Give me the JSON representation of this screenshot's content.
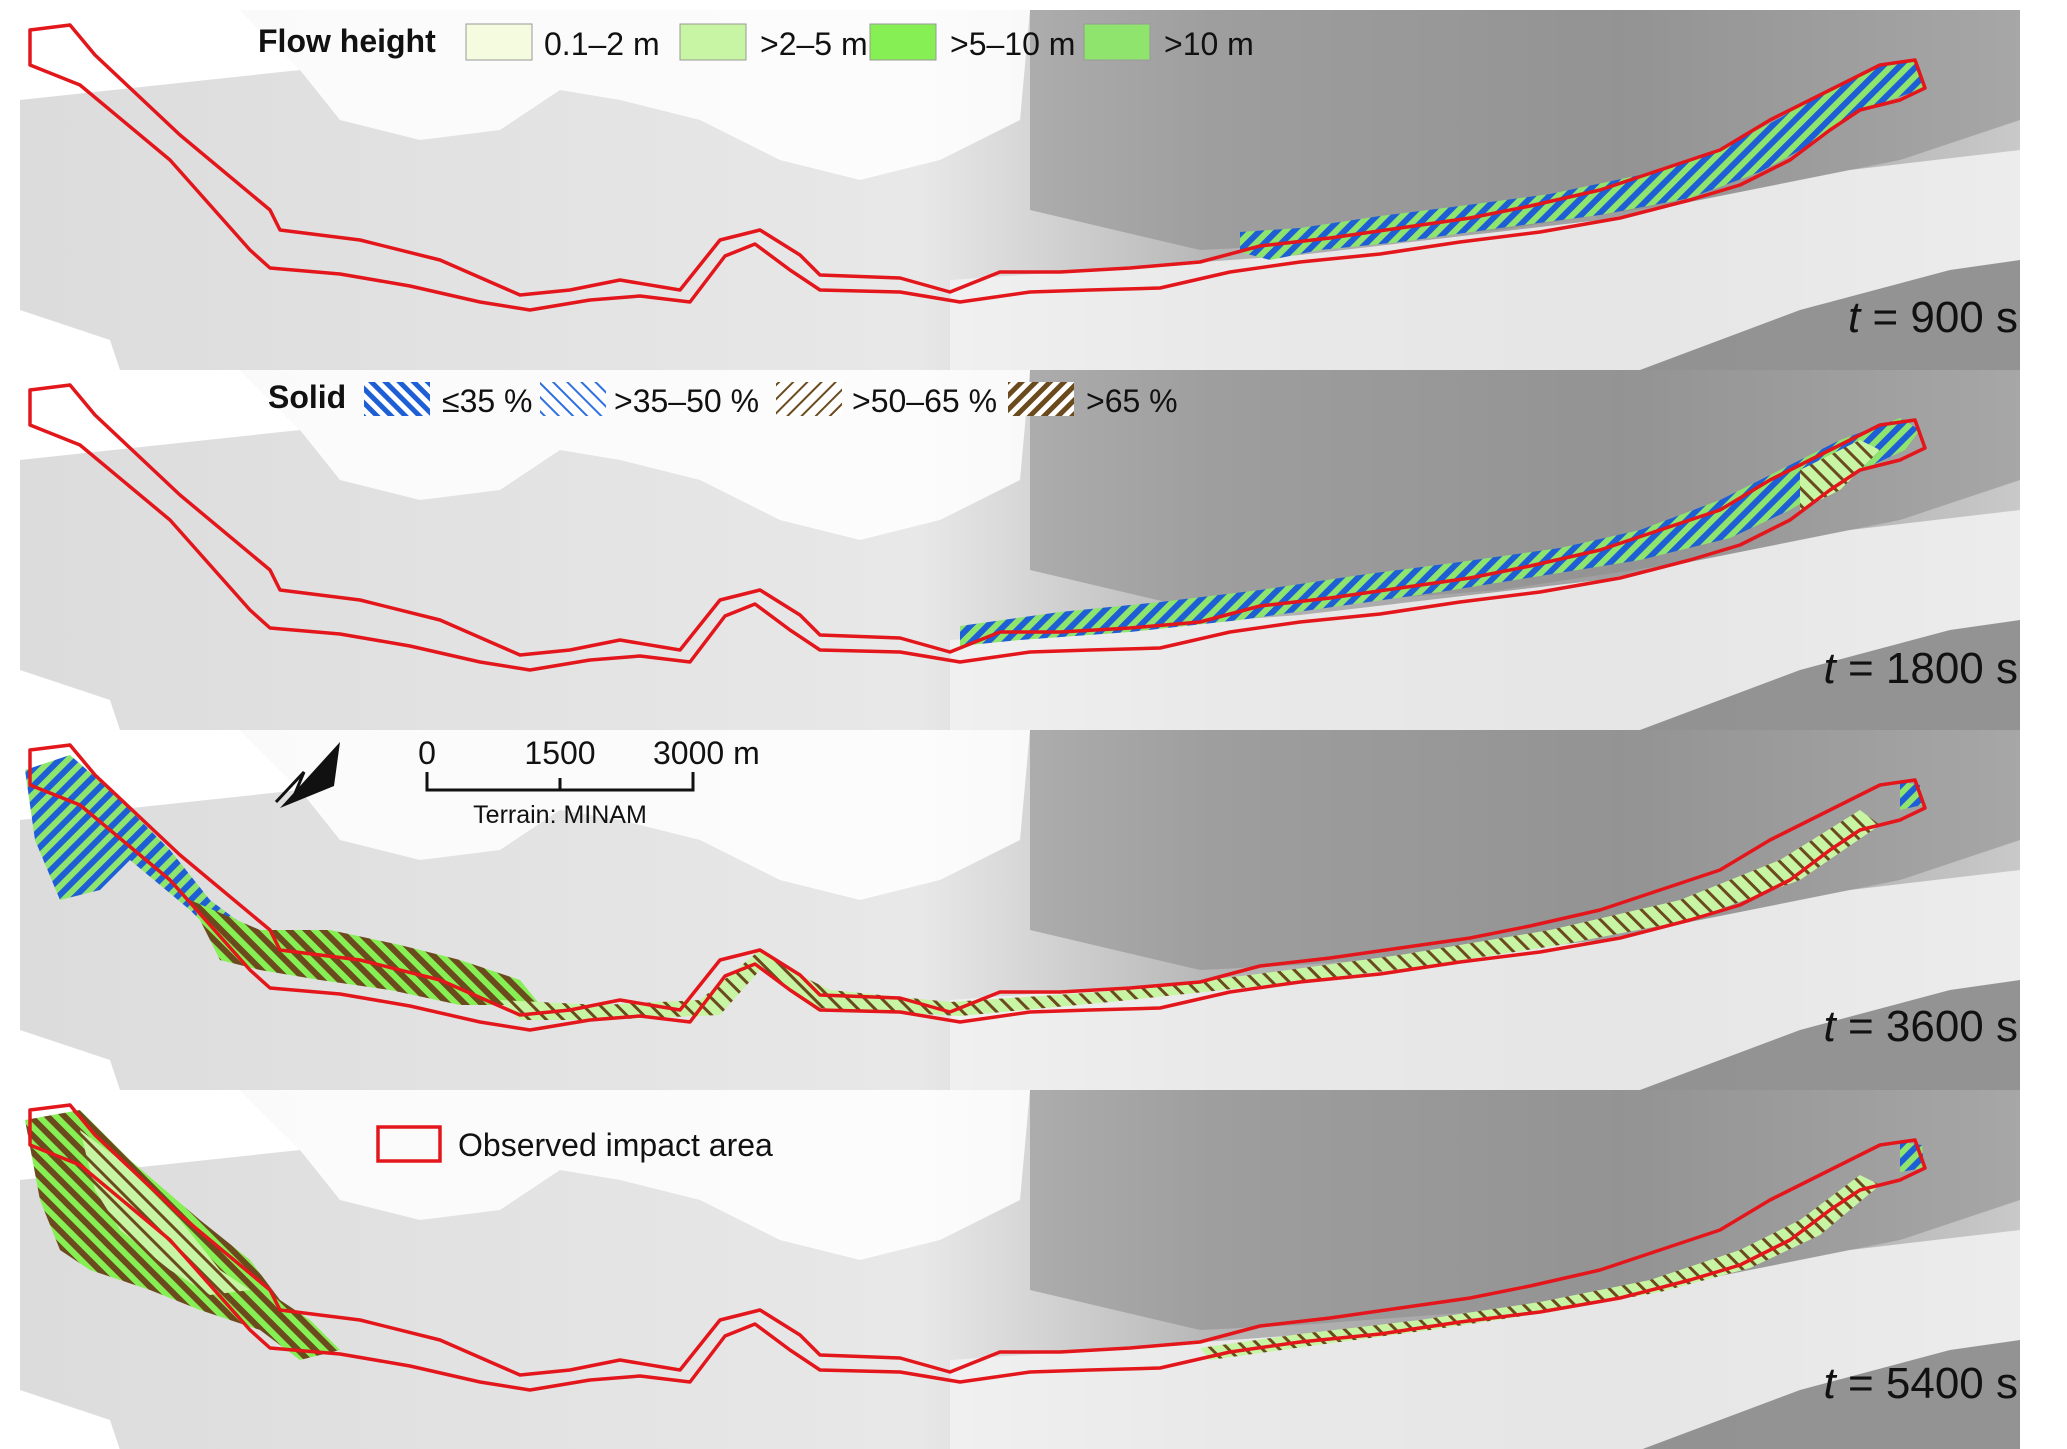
{
  "panels": [
    {
      "id": "p1",
      "time_var": "t",
      "time_value": "= 900 s"
    },
    {
      "id": "p2",
      "time_var": "t",
      "time_value": "= 1800 s"
    },
    {
      "id": "p3",
      "time_var": "t",
      "time_value": "= 3600 s"
    },
    {
      "id": "p4",
      "time_var": "t",
      "time_value": "= 5400 s"
    }
  ],
  "legend_flow": {
    "title": "Flow height",
    "items": [
      {
        "label": "0.1–2 m",
        "color": "#f4fbdf"
      },
      {
        "label": ">2–5 m",
        "color": "#c7f5a3"
      },
      {
        "label": ">5–10 m",
        "color": "#86ef53"
      },
      {
        "label": ">10 m",
        "color": "#8ee46c"
      }
    ]
  },
  "legend_solid": {
    "title": "Solid",
    "items": [
      {
        "label": "≤35 %",
        "color": "#1f5fd6",
        "pattern": "dense-blue-hatch"
      },
      {
        "label": ">35–50 %",
        "color": "#3e7be0",
        "pattern": "sparse-blue-hatch"
      },
      {
        "label": ">50–65 %",
        "color": "#7a5a2e",
        "pattern": "sparse-brown-hatch"
      },
      {
        "label": ">65 %",
        "color": "#6b4a1e",
        "pattern": "dense-brown-hatch"
      }
    ]
  },
  "scale_bar": {
    "ticks": [
      "0",
      "1500",
      "3000 m"
    ],
    "caption": "Terrain: MINAM",
    "north_icon": "north-arrow-icon"
  },
  "legend_observed": {
    "label": "Observed impact area",
    "color": "#e3161c"
  }
}
